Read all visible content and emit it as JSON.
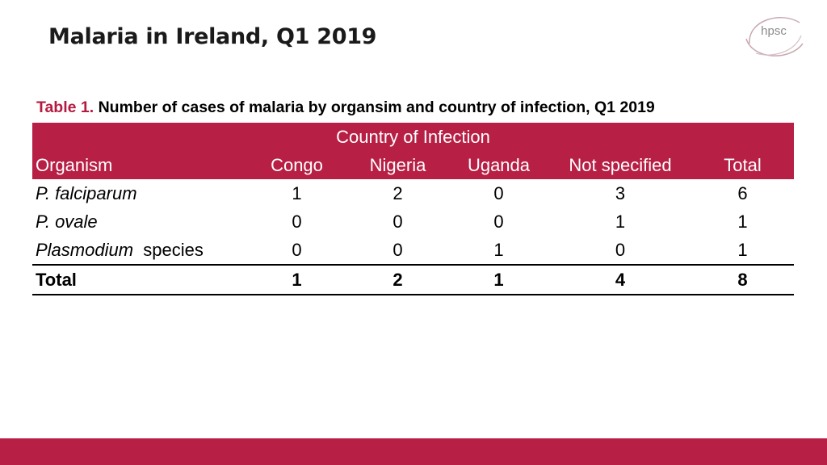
{
  "slide": {
    "title": "Malaria in Ireland, Q1 2019",
    "logo_text": "hpsc",
    "colors": {
      "accent": "#b71f45",
      "caption_lead": "#b5193f"
    }
  },
  "caption": {
    "lead": "Table 1.",
    "text": " Number of cases of malaria by organsim and country of infection, Q1 2019"
  },
  "table": {
    "group_header": "Country of Infection",
    "headers": [
      "Organism",
      "Congo",
      "Nigeria",
      "Uganda",
      "Not specified",
      "Total"
    ],
    "rows": [
      {
        "organism_italic": "P. falciparum",
        "organism_suffix": "",
        "values": [
          "1",
          "2",
          "0",
          "3",
          "6"
        ]
      },
      {
        "organism_italic": "P. ovale",
        "organism_suffix": "",
        "values": [
          "0",
          "0",
          "0",
          "1",
          "1"
        ]
      },
      {
        "organism_italic": "Plasmodium",
        "organism_suffix": "  species",
        "values": [
          "0",
          "0",
          "1",
          "0",
          "1"
        ]
      }
    ],
    "total": {
      "label": "Total",
      "values": [
        "1",
        "2",
        "1",
        "4",
        "8"
      ]
    }
  }
}
